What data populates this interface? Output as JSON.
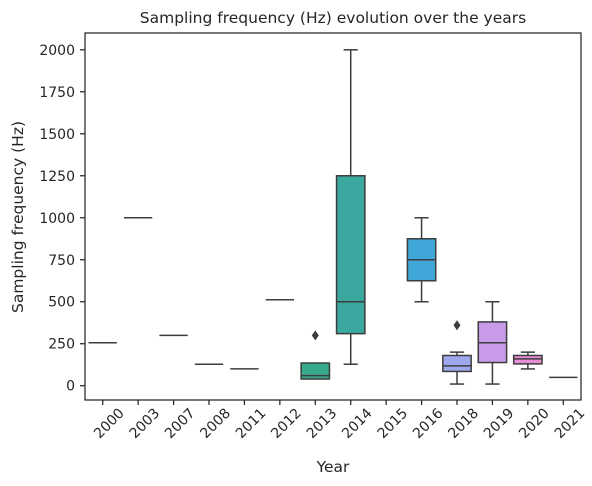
{
  "chart_data": {
    "type": "box",
    "title": "Sampling frequency (Hz) evolution over the years",
    "xlabel": "Year",
    "ylabel": "Sampling frequency (Hz)",
    "ylim": [
      -85,
      2100
    ],
    "yticks": [
      0,
      250,
      500,
      750,
      1000,
      1250,
      1500,
      1750,
      2000
    ],
    "grid": false,
    "categories": [
      "2000",
      "2003",
      "2007",
      "2008",
      "2011",
      "2012",
      "2013",
      "2014",
      "2015",
      "2016",
      "2018",
      "2019",
      "2020",
      "2021"
    ],
    "boxes": [
      {
        "year": "2000",
        "min": 256,
        "q1": 256,
        "median": 256,
        "q3": 256,
        "max": 256,
        "outliers": [],
        "color": "#c48e2e"
      },
      {
        "year": "2003",
        "min": 1000,
        "q1": 1000,
        "median": 1000,
        "q3": 1000,
        "max": 1000,
        "outliers": [],
        "color": "#a99b2e"
      },
      {
        "year": "2007",
        "min": 300,
        "q1": 300,
        "median": 300,
        "q3": 300,
        "max": 300,
        "outliers": [],
        "color": "#8ea32e"
      },
      {
        "year": "2008",
        "min": 128,
        "q1": 128,
        "median": 128,
        "q3": 128,
        "max": 128,
        "outliers": [],
        "color": "#5fad32"
      },
      {
        "year": "2011",
        "min": 100,
        "q1": 100,
        "median": 100,
        "q3": 100,
        "max": 100,
        "outliers": [],
        "color": "#33b04a"
      },
      {
        "year": "2012",
        "min": 512,
        "q1": 512,
        "median": 512,
        "q3": 512,
        "max": 512,
        "outliers": [],
        "color": "#35ac74"
      },
      {
        "year": "2013",
        "min": 40,
        "q1": 40,
        "median": 60,
        "q3": 135,
        "max": 135,
        "outliers": [
          300
        ],
        "color": "#37aa8b"
      },
      {
        "year": "2014",
        "min": 128,
        "q1": 310,
        "median": 500,
        "q3": 1250,
        "max": 2000,
        "outliers": [],
        "color": "#3aa89f"
      },
      {
        "year": "2015",
        "min": null,
        "q1": null,
        "median": null,
        "q3": null,
        "max": null,
        "outliers": [],
        "color": "#3ca6b2"
      },
      {
        "year": "2016",
        "min": 500,
        "q1": 625,
        "median": 750,
        "q3": 875,
        "max": 1000,
        "outliers": [],
        "color": "#40a8d8"
      },
      {
        "year": "2018",
        "min": 10,
        "q1": 85,
        "median": 118,
        "q3": 180,
        "max": 200,
        "outliers": [
          360
        ],
        "color": "#9ea8ec"
      },
      {
        "year": "2019",
        "min": 10,
        "q1": 138,
        "median": 256,
        "q3": 380,
        "max": 500,
        "outliers": [],
        "color": "#c89ae8"
      },
      {
        "year": "2020",
        "min": 100,
        "q1": 130,
        "median": 160,
        "q3": 180,
        "max": 200,
        "outliers": [],
        "color": "#e88ed4"
      },
      {
        "year": "2021",
        "min": 50,
        "q1": 50,
        "median": 50,
        "q3": 50,
        "max": 50,
        "outliers": [],
        "color": "#ee8ab8"
      }
    ]
  }
}
